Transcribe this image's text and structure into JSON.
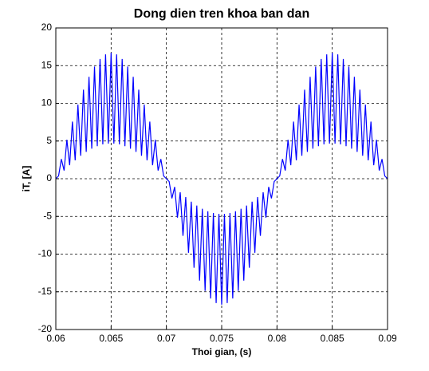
{
  "chart_data": {
    "type": "line",
    "title": "Dong dien tren khoa ban dan",
    "x_label": "Thoi gian, (s)",
    "y_label": "iT, [A]",
    "xlim": [
      0.06,
      0.09
    ],
    "xticks": [
      0.06,
      0.065,
      0.07,
      0.075,
      0.08,
      0.085,
      0.09
    ],
    "ylim": [
      -20,
      20
    ],
    "yticks": [
      -20,
      -15,
      -10,
      -5,
      0,
      5,
      10,
      15,
      20
    ],
    "grid": true,
    "x": [
      0.06,
      0.06025,
      0.0605,
      0.06075,
      0.061,
      0.06125,
      0.0615,
      0.06175,
      0.062,
      0.06225,
      0.0625,
      0.06275,
      0.063,
      0.06325,
      0.0635,
      0.06375,
      0.064,
      0.06425,
      0.0645,
      0.06475,
      0.065,
      0.06525,
      0.0655,
      0.06575,
      0.066,
      0.06625,
      0.0665,
      0.06675,
      0.067,
      0.06725,
      0.0675,
      0.06775,
      0.068,
      0.06825,
      0.0685,
      0.06875,
      0.069,
      0.06925,
      0.0695,
      0.06975,
      0.07,
      0.07025,
      0.0705,
      0.07075,
      0.071,
      0.07125,
      0.0715,
      0.07175,
      0.072,
      0.07225,
      0.0725,
      0.07275,
      0.073,
      0.07325,
      0.0735,
      0.07375,
      0.074,
      0.07425,
      0.0745,
      0.07475,
      0.075,
      0.07525,
      0.0755,
      0.07575,
      0.076,
      0.07625,
      0.0765,
      0.07675,
      0.077,
      0.07725,
      0.0775,
      0.07775,
      0.078,
      0.07825,
      0.0785,
      0.07875,
      0.079,
      0.07925,
      0.0795,
      0.07975,
      0.08,
      0.08025,
      0.0805,
      0.08075,
      0.081,
      0.08125,
      0.0815,
      0.08175,
      0.082,
      0.08225,
      0.0825,
      0.08275,
      0.083,
      0.08325,
      0.0835,
      0.08375,
      0.084,
      0.08425,
      0.0845,
      0.08475,
      0.085,
      0.08525,
      0.0855,
      0.08575,
      0.086,
      0.08625,
      0.0865,
      0.08675,
      0.087,
      0.08725,
      0.0875,
      0.08775,
      0.088,
      0.08825,
      0.0885,
      0.08875,
      0.089,
      0.08925,
      0.0895,
      0.08975,
      0.09
    ],
    "series": [
      {
        "color": "#0000ff",
        "values": [
          0,
          0.37,
          2.61,
          1.09,
          5.16,
          1.79,
          7.58,
          2.44,
          9.82,
          3.04,
          11.81,
          3.56,
          13.51,
          3.99,
          14.88,
          4.32,
          15.88,
          4.55,
          16.49,
          4.66,
          16.7,
          4.66,
          16.49,
          4.55,
          15.88,
          4.32,
          14.88,
          3.99,
          13.51,
          3.56,
          11.81,
          3.04,
          9.82,
          2.44,
          7.58,
          1.79,
          5.16,
          1.09,
          2.61,
          0.37,
          0,
          -0.37,
          -2.61,
          -1.09,
          -5.16,
          -1.79,
          -7.58,
          -2.44,
          -9.82,
          -3.04,
          -11.81,
          -3.56,
          -13.51,
          -3.99,
          -14.88,
          -4.32,
          -15.88,
          -4.55,
          -16.49,
          -4.66,
          -16.7,
          -4.66,
          -16.49,
          -4.55,
          -15.88,
          -4.32,
          -14.88,
          -3.99,
          -13.51,
          -3.56,
          -11.81,
          -3.04,
          -9.82,
          -2.44,
          -7.58,
          -1.79,
          -5.16,
          -1.09,
          -2.61,
          -0.37,
          0,
          0.37,
          2.61,
          1.09,
          5.16,
          1.79,
          7.58,
          2.44,
          9.82,
          3.04,
          11.81,
          3.56,
          13.51,
          3.99,
          14.88,
          4.32,
          15.88,
          4.55,
          16.49,
          4.66,
          16.7,
          4.66,
          16.49,
          4.55,
          15.88,
          4.32,
          14.88,
          3.99,
          13.51,
          3.56,
          11.81,
          3.04,
          9.82,
          2.44,
          7.58,
          1.79,
          5.16,
          1.09,
          2.61,
          0.37,
          0
        ]
      }
    ]
  }
}
